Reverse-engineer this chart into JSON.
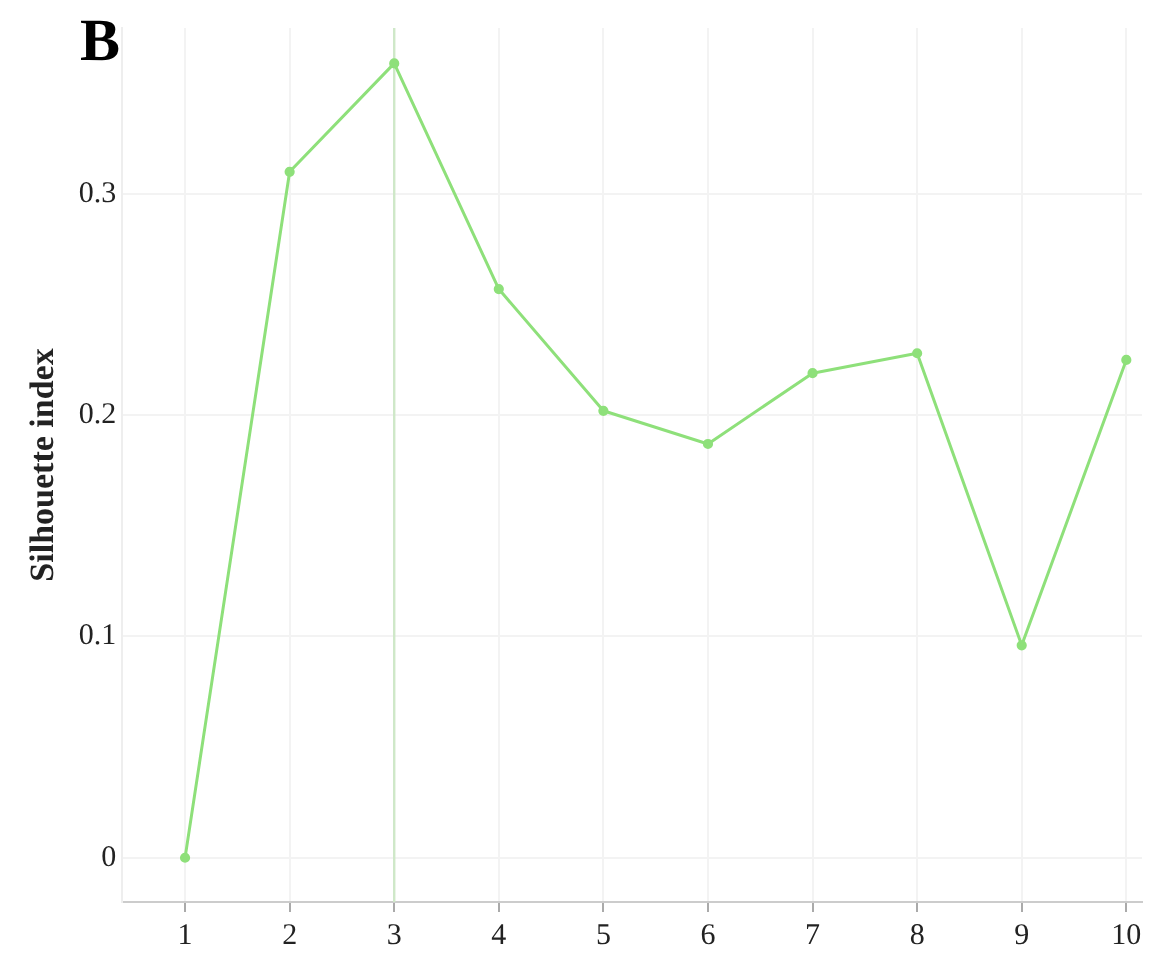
{
  "chart_data": {
    "type": "line",
    "title": "B",
    "ylabel": "Silhouette index",
    "x": [
      1,
      2,
      3,
      4,
      5,
      6,
      7,
      8,
      9,
      10
    ],
    "series": [
      {
        "color": "#8ee07a",
        "values": [
          0,
          0.31,
          0.359,
          0.257,
          0.202,
          0.187,
          0.219,
          0.228,
          0.096,
          0.225
        ]
      }
    ],
    "xlim": [
      0.4,
      10.15
    ],
    "xticks": [
      1,
      2,
      3,
      4,
      5,
      6,
      7,
      8,
      9,
      10
    ],
    "ylim": [
      -0.02,
      0.375
    ],
    "yticks": [
      0,
      0.1,
      0.2,
      0.3
    ],
    "ref_lines": [
      {
        "axis": "x",
        "value": 3,
        "color": "#cfe8c8"
      }
    ],
    "grid": true,
    "legend": false,
    "marker": "circle",
    "line_style": "solid"
  }
}
